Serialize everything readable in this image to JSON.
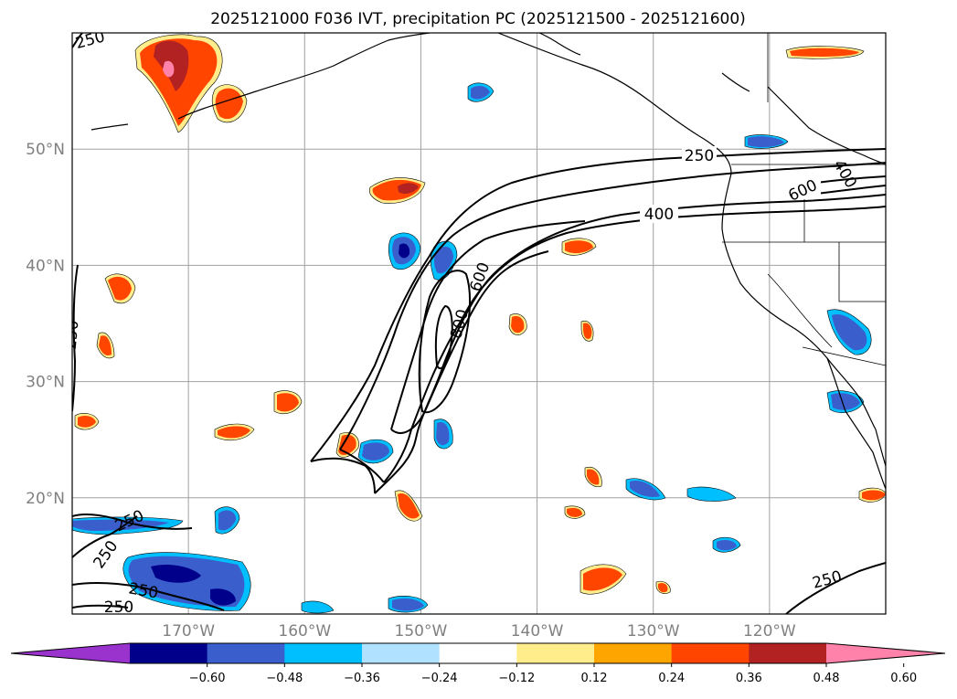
{
  "title": "2025121000 F036 IVT, precipitation PC (2025121500 - 2025121600)",
  "map": {
    "lon_range": [
      -180,
      -110
    ],
    "lat_range": [
      10,
      60
    ],
    "lat_ticks": [
      {
        "value": 50,
        "label": "50°N"
      },
      {
        "value": 40,
        "label": "40°N"
      },
      {
        "value": 30,
        "label": "30°N"
      },
      {
        "value": 20,
        "label": "20°N"
      }
    ],
    "lon_ticks": [
      {
        "value": -170,
        "label": "170°W"
      },
      {
        "value": -160,
        "label": "160°W"
      },
      {
        "value": -150,
        "label": "150°W"
      },
      {
        "value": -140,
        "label": "140°W"
      },
      {
        "value": -130,
        "label": "130°W"
      },
      {
        "value": -120,
        "label": "120°W"
      }
    ],
    "ivt_contour_labels": [
      "250",
      "250",
      "250",
      "250",
      "250",
      "250",
      "250",
      "400",
      "400",
      "600",
      "600",
      "800"
    ]
  },
  "colorbar": {
    "ticks": [
      "−0.60",
      "−0.48",
      "−0.36",
      "−0.24",
      "−0.12",
      "0.12",
      "0.24",
      "0.36",
      "0.48",
      "0.60"
    ],
    "colors": [
      "#9a32cd",
      "#00008b",
      "#3a5fcd",
      "#00bfff",
      "#b0e2ff",
      "#ffffff",
      "#ffec8b",
      "#ffa500",
      "#ff4500",
      "#b22222",
      "#ff82ab"
    ]
  },
  "colors": {
    "grid": "#a0a0a0",
    "coast": "#000000",
    "contour": "#000000"
  }
}
